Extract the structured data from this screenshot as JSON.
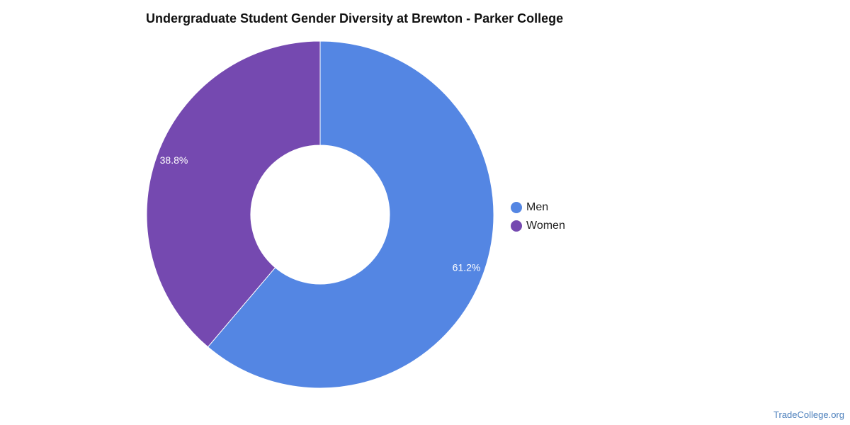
{
  "chart_data": {
    "type": "pie",
    "title": "Undergraduate Student Gender Diversity at Brewton - Parker College",
    "donut": true,
    "legend_position": "right",
    "categories": [
      "Men",
      "Women"
    ],
    "values": [
      61.2,
      38.8
    ],
    "labels": [
      "61.2%",
      "38.8%"
    ],
    "colors": [
      "#5486e3",
      "#7549b0"
    ]
  },
  "credit": "TradeCollege.org"
}
